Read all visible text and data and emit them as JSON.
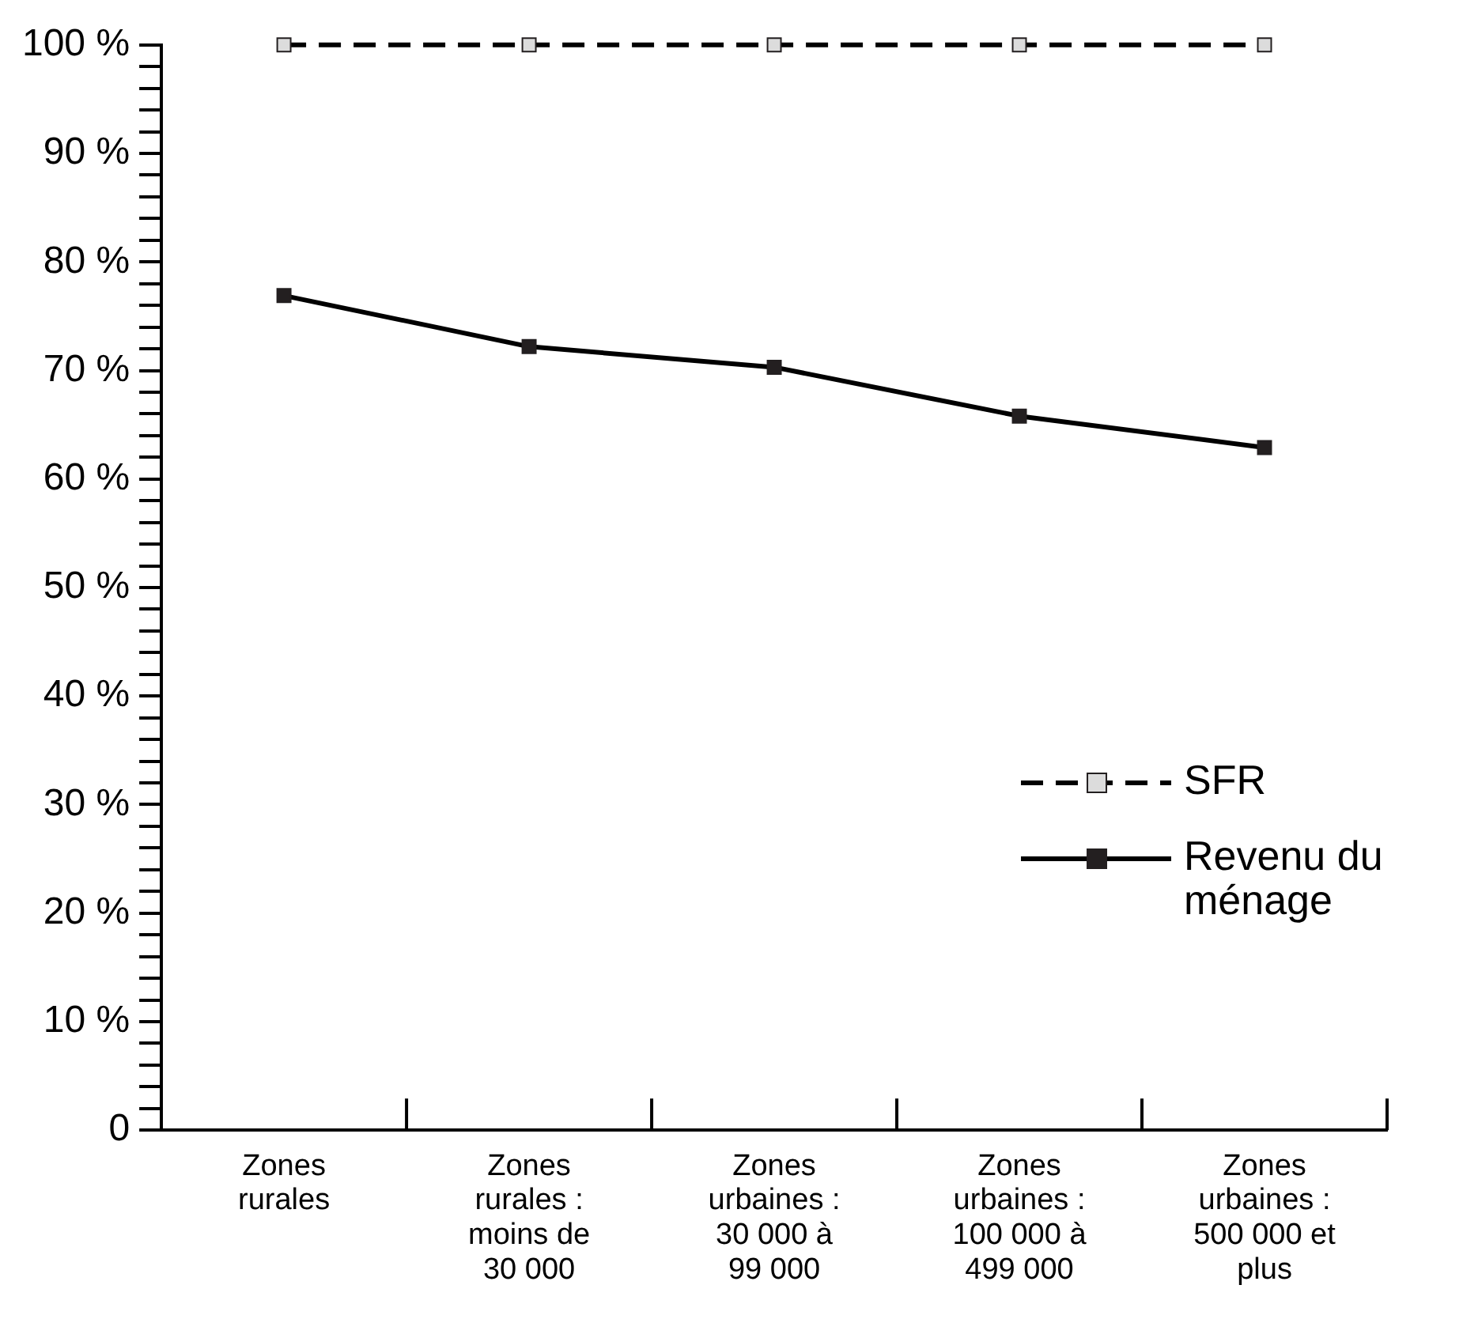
{
  "chart_data": {
    "type": "line",
    "categories": [
      "Zones rurales",
      "Zones rurales : moins de 30 000",
      "Zones urbaines : 30 000 à 99 000",
      "Zones urbaines : 100 000 à 499 000",
      "Zones urbaines : 500 000 et plus"
    ],
    "series": [
      {
        "name": "SFR",
        "color": "#dcdcdc",
        "line_style": "dashed",
        "values": [
          100,
          100,
          100,
          100,
          100
        ]
      },
      {
        "name": "Revenu du ménage",
        "color": "#231f20",
        "line_style": "solid",
        "values": [
          76.9,
          72.2,
          70.3,
          65.8,
          62.9
        ]
      }
    ],
    "ylim": [
      0,
      100
    ],
    "yticks": [
      0,
      {
        "value": 2,
        "label": null
      },
      {
        "value": 4,
        "label": null
      },
      {
        "value": 6,
        "label": null
      },
      {
        "value": 8,
        "label": null
      },
      {
        "value": 10,
        "label": "10 %"
      },
      {
        "value": 12,
        "label": null
      },
      {
        "value": 14,
        "label": null
      },
      {
        "value": 16,
        "label": null
      },
      {
        "value": 18,
        "label": null
      },
      {
        "value": 20,
        "label": "20 %"
      },
      {
        "value": 22,
        "label": null
      },
      {
        "value": 24,
        "label": null
      },
      {
        "value": 26,
        "label": null
      },
      {
        "value": 28,
        "label": null
      },
      {
        "value": 30,
        "label": "30 %"
      },
      {
        "value": 32,
        "label": null
      },
      {
        "value": 34,
        "label": null
      },
      {
        "value": 36,
        "label": null
      },
      {
        "value": 38,
        "label": null
      },
      {
        "value": 40,
        "label": "40 %"
      },
      {
        "value": 42,
        "label": null
      },
      {
        "value": 44,
        "label": null
      },
      {
        "value": 46,
        "label": null
      },
      {
        "value": 48,
        "label": null
      },
      {
        "value": 50,
        "label": "50 %"
      },
      {
        "value": 52,
        "label": null
      },
      {
        "value": 54,
        "label": null
      },
      {
        "value": 56,
        "label": null
      },
      {
        "value": 58,
        "label": null
      },
      {
        "value": 60,
        "label": "60 %"
      },
      {
        "value": 62,
        "label": null
      },
      {
        "value": 64,
        "label": null
      },
      {
        "value": 66,
        "label": null
      },
      {
        "value": 68,
        "label": null
      },
      {
        "value": 70,
        "label": "70 %"
      },
      {
        "value": 72,
        "label": null
      },
      {
        "value": 74,
        "label": null
      },
      {
        "value": 76,
        "label": null
      },
      {
        "value": 78,
        "label": null
      },
      {
        "value": 80,
        "label": "80 %"
      },
      {
        "value": 82,
        "label": null
      },
      {
        "value": 84,
        "label": null
      },
      {
        "value": 86,
        "label": null
      },
      {
        "value": 88,
        "label": null
      },
      {
        "value": 90,
        "label": "90 %"
      },
      {
        "value": 92,
        "label": null
      },
      {
        "value": 94,
        "label": null
      },
      {
        "value": 96,
        "label": null
      },
      {
        "value": 98,
        "label": null
      },
      {
        "value": 100,
        "label": "100 %"
      }
    ],
    "marker": "square",
    "legend": "right",
    "grid": false
  }
}
